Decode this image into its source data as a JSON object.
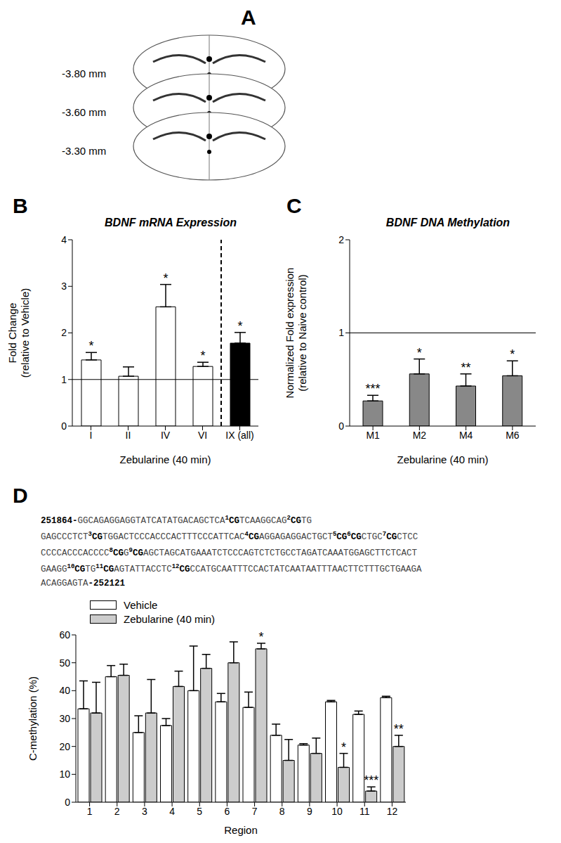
{
  "panel_labels": [
    "A",
    "B",
    "C",
    "D"
  ],
  "atlas": {
    "sections": [
      "-3.80 mm",
      "-3.60 mm",
      "-3.30 mm"
    ]
  },
  "sequence": {
    "lines": [
      [
        {
          "b": "251864-"
        },
        {
          "t": "GGCAGAGGAGGTATCATATGACAGCTCA"
        },
        {
          "sup": "1"
        },
        {
          "b": "CG"
        },
        {
          "t": "TCAAGGCAG"
        },
        {
          "sup": "2"
        },
        {
          "b": "CG"
        },
        {
          "t": "TG"
        }
      ],
      [
        {
          "t": "GAGCCCTCT"
        },
        {
          "sup": "3"
        },
        {
          "b": "CG"
        },
        {
          "t": "TGGACTCCCACCCACTTTCCCATTCAC"
        },
        {
          "sup": "4"
        },
        {
          "b": "CG"
        },
        {
          "t": "AGGAGAGGACTGCT"
        },
        {
          "sup": "5"
        },
        {
          "b": "CG"
        },
        {
          "sup": "6"
        },
        {
          "b": "CG"
        },
        {
          "t": "CTGC"
        },
        {
          "sup": "7"
        },
        {
          "b": "CG"
        },
        {
          "t": "CTCC"
        }
      ],
      [
        {
          "t": "CCCCACCCACCCC"
        },
        {
          "sup": "8"
        },
        {
          "b": "CG"
        },
        {
          "t": "G"
        },
        {
          "sup": "9"
        },
        {
          "b": "CG"
        },
        {
          "t": "AGCTAGCATGAAATCTCCCAGTCTCTGCCTAGATCAAATGGAGCTTCTCACT"
        }
      ],
      [
        {
          "t": "GAAGG"
        },
        {
          "sup": "10"
        },
        {
          "b": "CG"
        },
        {
          "t": "TG"
        },
        {
          "sup": "11"
        },
        {
          "b": "CG"
        },
        {
          "t": "AGTATTACCTC"
        },
        {
          "sup": "12"
        },
        {
          "b": "CG"
        },
        {
          "t": "CCATGCAATTTCCACTATCAATAATTTAACTTCTTTGCTGAAGA"
        }
      ],
      [
        {
          "t": "ACAGGAGTA"
        },
        {
          "b": "-252121"
        }
      ]
    ]
  },
  "chart_data": [
    {
      "type": "bar",
      "title": "BDNF mRNA Expression",
      "xlabel": "Zebularine (40 min)",
      "ylabel": [
        "Fold Change",
        "(relative to Vehicle)"
      ],
      "categories": [
        "I",
        "II",
        "IV",
        "VI",
        "IX (all)"
      ],
      "values": [
        1.42,
        1.07,
        2.56,
        1.28,
        1.78
      ],
      "errors": [
        0.16,
        0.2,
        0.48,
        0.09,
        0.23
      ],
      "significance": [
        "*",
        null,
        "*",
        "*",
        "*"
      ],
      "colors": [
        "#ffffff",
        "#ffffff",
        "#ffffff",
        "#ffffff",
        "#000000"
      ],
      "baseline": 1,
      "ylim": [
        0,
        4
      ],
      "yticks": [
        0,
        1,
        2,
        3,
        4
      ],
      "grid": false
    },
    {
      "type": "bar",
      "title": "BDNF DNA Methylation",
      "xlabel": "Zebularine (40 min)",
      "ylabel": [
        "Normalized Fold expression",
        "(relative to Naive control)"
      ],
      "categories": [
        "M1",
        "M2",
        "M4",
        "M6"
      ],
      "values": [
        0.27,
        0.56,
        0.43,
        0.54
      ],
      "errors": [
        0.06,
        0.16,
        0.13,
        0.16
      ],
      "significance": [
        "***",
        "*",
        "**",
        "*"
      ],
      "color": "#888888",
      "baseline": 1,
      "ylim": [
        0,
        2
      ],
      "yticks": [
        0,
        1,
        2
      ],
      "grid": false
    },
    {
      "type": "bar",
      "xlabel": "Region",
      "ylabel": [
        "C-methylation (%)"
      ],
      "categories": [
        "1",
        "2",
        "3",
        "4",
        "5",
        "6",
        "7",
        "8",
        "9",
        "10",
        "11",
        "12"
      ],
      "series": [
        {
          "name": "Vehicle",
          "color": "#ffffff",
          "values": [
            33.5,
            45,
            25,
            27.5,
            40,
            36,
            34,
            24,
            20.5,
            36,
            31.5,
            37.5
          ],
          "errors": [
            10,
            4,
            6,
            2.5,
            16,
            3,
            5.5,
            4,
            0.5,
            0.5,
            1.2,
            0.5
          ]
        },
        {
          "name": "Zebularine (40 min)",
          "color": "#cccccc",
          "values": [
            32,
            45.5,
            32,
            41.5,
            48,
            50,
            55,
            15,
            17.5,
            12.5,
            4,
            20
          ],
          "errors": [
            11,
            4,
            12,
            5.5,
            5,
            7.5,
            2,
            7.5,
            5.5,
            5,
            1.5,
            4
          ],
          "significance": [
            null,
            null,
            null,
            null,
            null,
            null,
            "*",
            null,
            null,
            "*",
            "***",
            "**"
          ]
        }
      ],
      "legend": "upper left",
      "ylim": [
        0,
        60
      ],
      "yticks": [
        0,
        10,
        20,
        30,
        40,
        50,
        60
      ],
      "grid": false
    }
  ]
}
